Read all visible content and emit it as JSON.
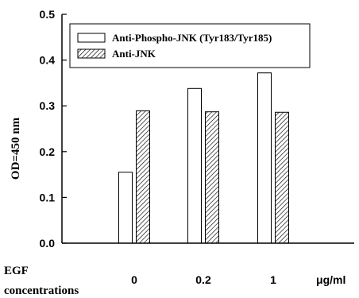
{
  "chart_data": {
    "type": "bar",
    "ylabel": "OD=450 nm",
    "ylim": [
      0,
      0.5
    ],
    "yticks": [
      "0.0",
      "0.1",
      "0.2",
      "0.3",
      "0.4",
      "0.5"
    ],
    "categories": [
      "0",
      "0.2",
      "1"
    ],
    "series": [
      {
        "name": "Anti-Phospho-JNK (Tyr183/Tyr185)",
        "pattern": "open",
        "values": [
          0.155,
          0.338,
          0.372
        ]
      },
      {
        "name": "Anti-JNK",
        "pattern": "hatched",
        "values": [
          0.289,
          0.287,
          0.286
        ]
      }
    ],
    "x_caption_line1": "EGF",
    "x_caption_line2": "concentrations",
    "x_unit": "μg/ml",
    "legend_position": "top-left inside",
    "colors": {
      "axis": "#000000",
      "bar_fill": "#ffffff",
      "hatch": "#000000"
    }
  }
}
